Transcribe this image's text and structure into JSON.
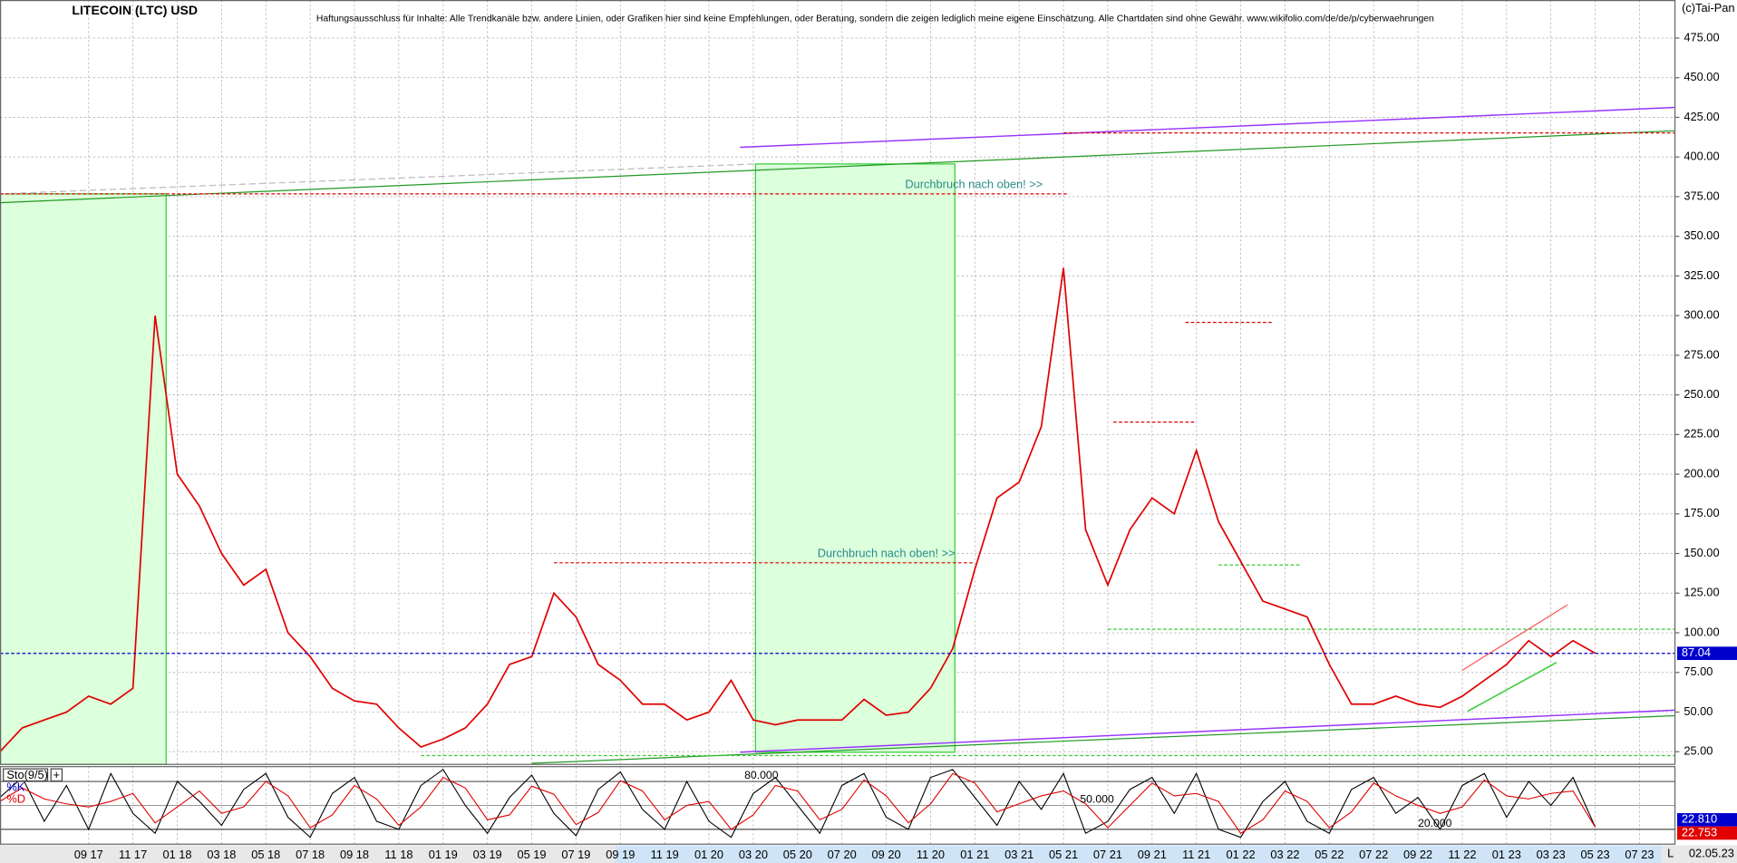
{
  "chart_data": [
    {
      "type": "line",
      "title": "LITECOIN (LTC) USD",
      "subtitle": "Haftungsausschluss für Inhalte: Alle Trendkanäle bzw. andere Linien, oder Grafiken hier sind keine Empfehlungen, oder Beratung, sondern die zeigen lediglich meine eigene Einschätzung. Alle Chartdaten sind ohne Gewähr.  www.wikifolio.com/de/de/p/cyberwaehrungen",
      "credit": "(c)Tai-Pan",
      "annotations": [
        "Durchbruch nach oben! >>",
        "Durchbruch nach oben! >>"
      ],
      "date_label": "02.05.23",
      "corner_label": "L",
      "categories": [
        null,
        null,
        null,
        null,
        "09 17",
        null,
        "11 17",
        null,
        "01 18",
        null,
        "03 18",
        null,
        "05 18",
        null,
        "07 18",
        null,
        "09 18",
        null,
        "11 18",
        null,
        "01 19",
        null,
        "03 19",
        null,
        "05 19",
        null,
        "07 19",
        null,
        "09 19",
        null,
        "11 19",
        null,
        "01 20",
        null,
        "03 20",
        null,
        "05 20",
        null,
        "07 20",
        null,
        "09 20",
        null,
        "11 20",
        null,
        "01 21",
        null,
        "03 21",
        null,
        "05 21",
        null,
        "07 21",
        null,
        "09 21",
        null,
        "11 21",
        null,
        "01 22",
        null,
        "03 22",
        null,
        "05 22",
        null,
        "07 22",
        null,
        "09 22",
        null,
        "11 22",
        null,
        "01 23",
        null,
        "03 23",
        null,
        "05 23",
        null,
        "07 23"
      ],
      "values": [
        25,
        40,
        45,
        50,
        60,
        55,
        65,
        300,
        200,
        180,
        150,
        130,
        140,
        100,
        85,
        65,
        57,
        55,
        40,
        28,
        33,
        40,
        55,
        80,
        85,
        125,
        110,
        80,
        70,
        55,
        55,
        45,
        50,
        70,
        45,
        42,
        45,
        45,
        45,
        58,
        48,
        50,
        65,
        90,
        140,
        185,
        195,
        230,
        330,
        165,
        130,
        165,
        185,
        175,
        215,
        170,
        145,
        120,
        115,
        110,
        80,
        55,
        55,
        60,
        55,
        53,
        60,
        70,
        80,
        95,
        85,
        95,
        87.04,
        null,
        null
      ],
      "color": "#e00000",
      "current_line_color": "#0000cc",
      "ylim": [
        17,
        499
      ],
      "yticks": [
        {
          "value": 25,
          "label": "25.00"
        },
        {
          "value": 50,
          "label": "50.00"
        },
        {
          "value": 75,
          "label": "75.00"
        },
        {
          "value": 100,
          "label": "100.00"
        },
        {
          "value": 125,
          "label": "125.00"
        },
        {
          "value": 150,
          "label": "150.00"
        },
        {
          "value": 175,
          "label": "175.00"
        },
        {
          "value": 200,
          "label": "200.00"
        },
        {
          "value": 225,
          "label": "225.00"
        },
        {
          "value": 250,
          "label": "250.00"
        },
        {
          "value": 275,
          "label": "275.00"
        },
        {
          "value": 300,
          "label": "300.00"
        },
        {
          "value": 325,
          "label": "325.00"
        },
        {
          "value": 350,
          "label": "350.00"
        },
        {
          "value": 375,
          "label": "375.00"
        },
        {
          "value": 400,
          "label": "400.00"
        },
        {
          "value": 425,
          "label": "425.00"
        },
        {
          "value": 450,
          "label": "450.00"
        },
        {
          "value": 475,
          "label": "475.00"
        }
      ],
      "grid": true
    },
    {
      "type": "line",
      "title": "Sto(9/5)",
      "series": [
        {
          "name": "%K",
          "color": "#000000",
          "values": [
            60,
            85,
            30,
            75,
            20,
            90,
            40,
            15,
            80,
            55,
            25,
            70,
            90,
            35,
            10,
            65,
            85,
            30,
            20,
            75,
            95,
            50,
            15,
            60,
            88,
            40,
            12,
            70,
            92,
            45,
            20,
            80,
            30,
            10,
            65,
            85,
            50,
            15,
            75,
            90,
            35,
            20,
            85,
            95,
            60,
            25,
            80,
            45,
            90,
            15,
            30,
            70,
            85,
            40,
            90,
            20,
            10,
            55,
            80,
            30,
            15,
            70,
            85,
            40,
            60,
            20,
            75,
            90,
            35,
            80,
            50,
            85,
            22.81,
            null,
            null
          ],
          "value_labels": [
            null,
            null,
            null,
            null,
            null,
            null,
            null,
            null,
            null,
            null,
            null,
            null,
            null,
            null,
            null,
            null,
            null,
            null,
            null,
            null,
            null,
            null,
            null,
            null,
            null,
            null,
            null,
            null,
            null,
            null,
            null,
            null,
            null,
            null,
            null,
            null,
            null,
            null,
            null,
            null,
            null,
            null,
            null,
            null,
            null,
            null,
            null,
            null,
            null,
            null,
            null,
            null,
            null,
            null,
            null,
            null,
            null,
            null,
            null,
            null,
            null,
            null,
            null,
            null,
            null,
            null,
            null,
            null,
            null,
            null,
            null,
            null,
            "22.810",
            null,
            null
          ]
        },
        {
          "name": "%D",
          "color": "#e00000",
          "values": [
            55,
            72,
            58,
            52,
            48,
            55,
            65,
            28,
            48,
            68,
            40,
            48,
            80,
            62,
            22,
            38,
            75,
            58,
            25,
            48,
            85,
            72,
            32,
            38,
            74,
            64,
            26,
            41,
            81,
            68,
            32,
            50,
            55,
            20,
            38,
            75,
            68,
            32,
            45,
            82,
            62,
            28,
            52,
            90,
            78,
            42,
            52,
            62,
            68,
            52,
            22,
            50,
            78,
            62,
            65,
            55,
            15,
            32,
            68,
            55,
            22,
            42,
            78,
            62,
            50,
            40,
            48,
            82,
            62,
            58,
            65,
            68,
            22.753,
            null,
            null
          ],
          "value_labels": [
            null,
            null,
            null,
            null,
            null,
            null,
            null,
            null,
            null,
            null,
            null,
            null,
            null,
            null,
            null,
            null,
            null,
            null,
            null,
            null,
            null,
            null,
            null,
            null,
            null,
            null,
            null,
            null,
            null,
            null,
            null,
            null,
            null,
            null,
            null,
            null,
            null,
            null,
            null,
            null,
            null,
            null,
            null,
            null,
            null,
            null,
            null,
            null,
            null,
            null,
            null,
            null,
            null,
            null,
            null,
            null,
            null,
            null,
            null,
            null,
            null,
            null,
            null,
            null,
            null,
            null,
            null,
            null,
            null,
            null,
            null,
            null,
            "22.753",
            null,
            null
          ]
        }
      ],
      "ylim": [
        0,
        100
      ],
      "yticks": [
        {
          "value": 80,
          "label": "80.000"
        },
        {
          "value": 50,
          "label": "50.000"
        },
        {
          "value": 20,
          "label": "20.000"
        }
      ]
    }
  ]
}
